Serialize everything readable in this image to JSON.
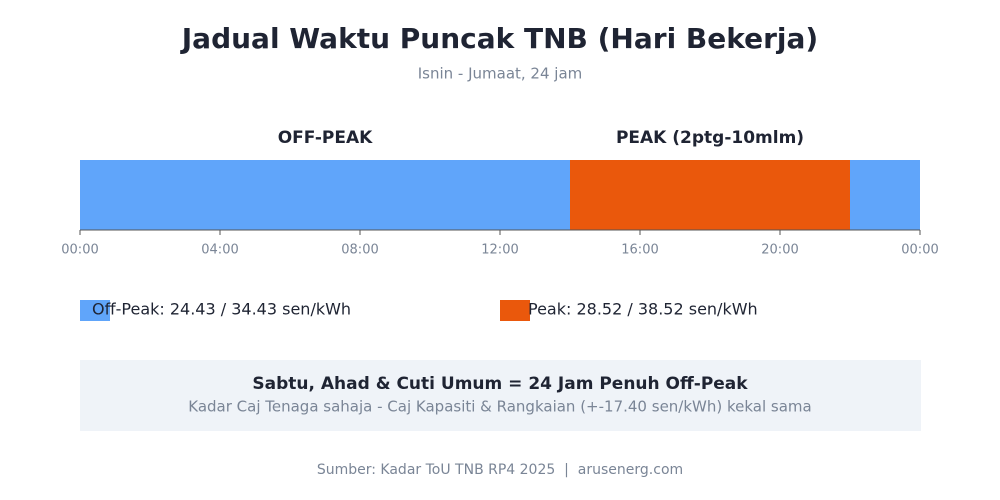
{
  "chart_data": {
    "type": "timeline",
    "title": "Jadual Waktu Puncak TNB (Hari Bekerja)",
    "subtitle": "Isnin - Jumaat, 24 jam",
    "xlim": [
      0,
      24
    ],
    "xticks": [
      {
        "value": 0,
        "label": "00:00"
      },
      {
        "value": 4,
        "label": "04:00"
      },
      {
        "value": 8,
        "label": "08:00"
      },
      {
        "value": 12,
        "label": "12:00"
      },
      {
        "value": 16,
        "label": "16:00"
      },
      {
        "value": 20,
        "label": "20:00"
      },
      {
        "value": 24,
        "label": "00:00"
      }
    ],
    "segments": [
      {
        "start": 0,
        "end": 14,
        "label": "OFF-PEAK",
        "color": "#60a5fa"
      },
      {
        "start": 14,
        "end": 22,
        "label": "PEAK (2ptg-10mlm)",
        "color": "#ea580c"
      },
      {
        "start": 22,
        "end": 24,
        "color": "#60a5fa"
      }
    ],
    "legend": [
      {
        "label": "Off-Peak: 24.43 / 34.43 sen/kWh",
        "color": "#60a5fa"
      },
      {
        "label": "Peak: 28.52 / 38.52 sen/kWh",
        "color": "#ea580c"
      }
    ],
    "note": {
      "title": "Sabtu, Ahad & Cuti Umum = 24 Jam Penuh Off-Peak",
      "text": "Kadar Caj Tenaga sahaja - Caj Kapasiti & Rangkaian (+-17.40 sen/kWh) kekal sama"
    },
    "source": "Sumber: Kadar ToU TNB RP4 2025  |  arusenerg.com"
  }
}
